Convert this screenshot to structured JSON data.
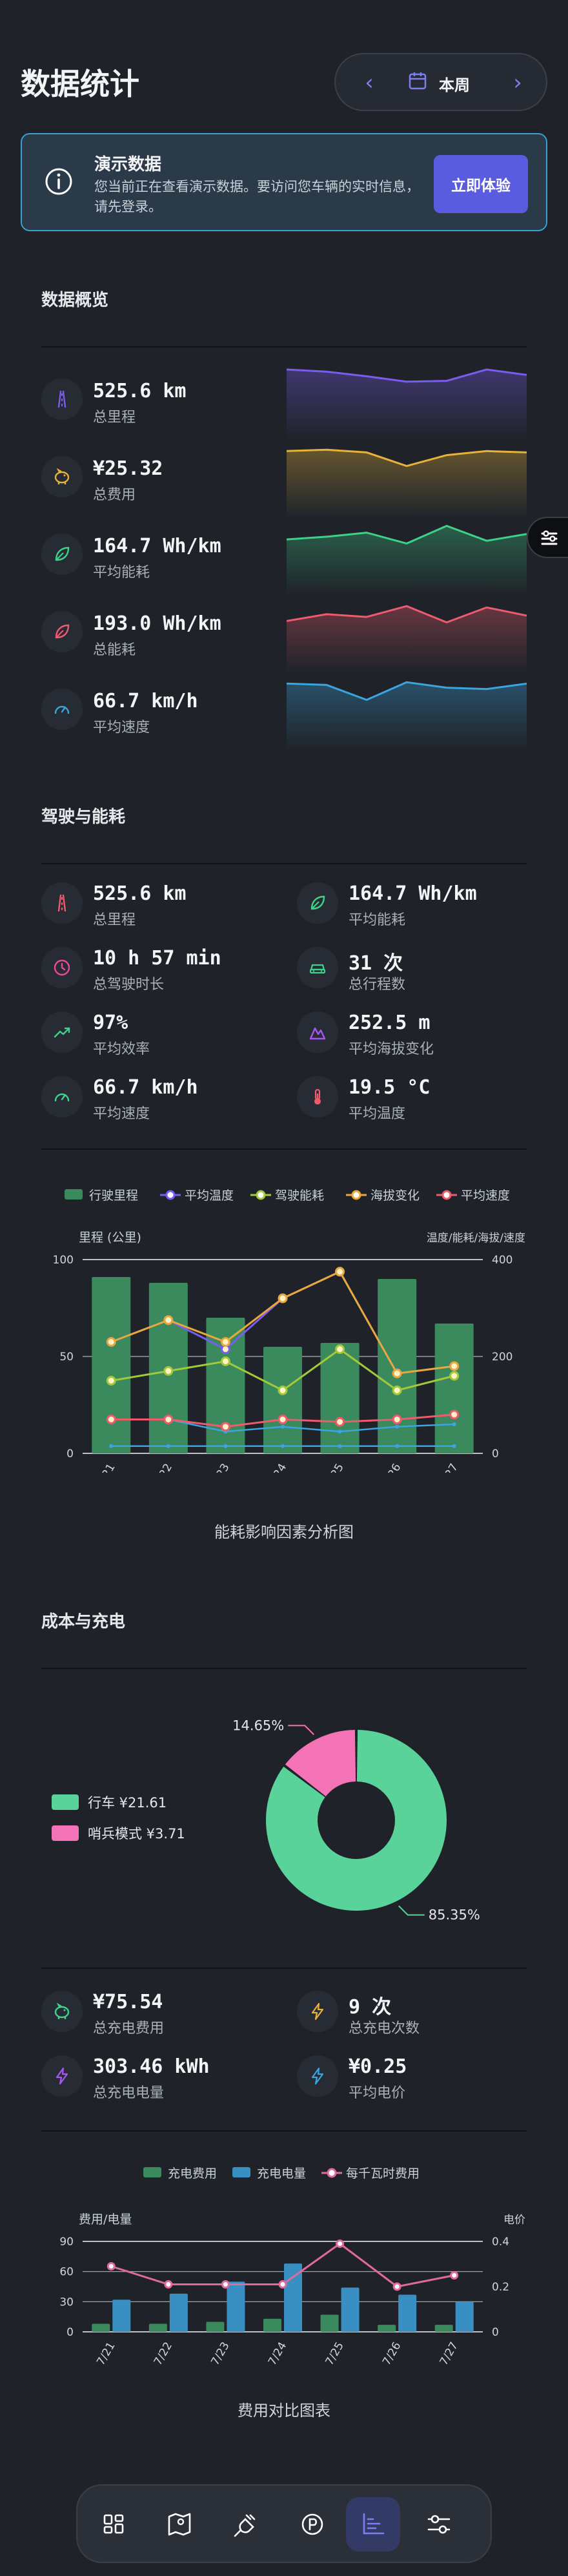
{
  "header": {
    "title": "数据统计",
    "week_label": "本周"
  },
  "banner": {
    "title": "演示数据",
    "text": "您当前正在查看演示数据。要访问您车辆的实时信息，请先登录。",
    "button": "立即体验"
  },
  "overview": {
    "title": "数据概览",
    "items": [
      {
        "icon": "road-icon",
        "value": "525.6 km",
        "label": "总里程",
        "color": "#7b5cf0",
        "trend": [
          1.0,
          0.92,
          0.75,
          0.55,
          0.58,
          1.0,
          0.8
        ]
      },
      {
        "icon": "piggy-bank-icon",
        "value": "¥25.32",
        "label": "总费用",
        "color": "#e8b23a",
        "trend": [
          0.85,
          0.9,
          0.8,
          0.3,
          0.7,
          0.85,
          0.8
        ]
      },
      {
        "icon": "leaf-icon",
        "value": "164.7 Wh/km",
        "label": "平均能耗",
        "color": "#3ed18a",
        "trend": [
          0.45,
          0.55,
          0.7,
          0.3,
          0.95,
          0.4,
          0.65
        ]
      },
      {
        "icon": "leaf-icon",
        "value": "193.0 Wh/km",
        "label": "总能耗",
        "color": "#ef5a6e",
        "trend": [
          0.3,
          0.55,
          0.45,
          0.85,
          0.25,
          0.8,
          0.5
        ]
      },
      {
        "icon": "speedometer-icon",
        "value": "66.7 km/h",
        "label": "平均速度",
        "color": "#3aa5e0",
        "trend": [
          0.85,
          0.8,
          0.25,
          0.9,
          0.7,
          0.65,
          0.85
        ]
      }
    ]
  },
  "driving": {
    "title": "驾驶与能耗",
    "stats": [
      {
        "icon": "road-icon",
        "value": "525.6 km",
        "label": "总里程",
        "color": "#ef5a6e"
      },
      {
        "icon": "leaf-icon",
        "value": "164.7 Wh/km",
        "label": "平均能耗",
        "color": "#3ed18a"
      },
      {
        "icon": "clock-icon",
        "value": "10 h 57 min",
        "label": "总驾驶时长",
        "color": "#ec4899"
      },
      {
        "icon": "car-icon",
        "value": "31 次",
        "label": "总行程数",
        "color": "#3ed18a"
      },
      {
        "icon": "trend-up-icon",
        "value": "97%",
        "label": "平均效率",
        "color": "#3ed18a"
      },
      {
        "icon": "mountain-icon",
        "value": "252.5 m",
        "label": "平均海拔变化",
        "color": "#a855f7"
      },
      {
        "icon": "speedometer-icon",
        "value": "66.7 km/h",
        "label": "平均速度",
        "color": "#3ed18a"
      },
      {
        "icon": "thermometer-icon",
        "value": "19.5 °C",
        "label": "平均温度",
        "color": "#ef5a6e"
      }
    ]
  },
  "chart_data": [
    {
      "type": "bar",
      "title": "能耗影响因素分析图",
      "ylabel": "里程 (公里)",
      "y2label": "温度/能耗/海拔/速度",
      "ylim": [
        0,
        100
      ],
      "y2lim": [
        0,
        400
      ],
      "yticks": [
        0,
        50,
        100
      ],
      "y2ticks": [
        0,
        200,
        400
      ],
      "categories": [
        "7/21",
        "7/22",
        "7/23",
        "7/24",
        "7/25",
        "7/26",
        "7/27"
      ],
      "legend": [
        "行驶里程",
        "平均温度",
        "驾驶能耗",
        "海拔变化",
        "平均速度"
      ],
      "series": [
        {
          "name": "行驶里程",
          "kind": "bar",
          "axis": "left",
          "color": "#3b8a5d",
          "values": [
            91,
            88,
            70,
            55,
            57,
            90,
            67
          ]
        },
        {
          "name": "平均温度",
          "kind": "line",
          "axis": "right",
          "color": "#7b5cf0",
          "values": [
            230,
            275,
            215,
            320,
            375,
            165,
            180
          ]
        },
        {
          "name": "驾驶能耗",
          "kind": "line",
          "axis": "right",
          "color": "#a3c93a",
          "values": [
            150,
            170,
            190,
            130,
            215,
            130,
            160
          ]
        },
        {
          "name": "海拔变化",
          "kind": "line",
          "axis": "right",
          "color": "#e8a83a",
          "values": [
            230,
            275,
            230,
            320,
            375,
            165,
            180
          ]
        },
        {
          "name": "平均速度",
          "kind": "line",
          "axis": "right",
          "color": "#ef5a6e",
          "values": [
            70,
            70,
            55,
            70,
            65,
            70,
            80
          ]
        }
      ],
      "extra_line": {
        "name": "",
        "color": "#3aa5e0",
        "values": [
          15,
          15,
          15,
          15,
          15,
          15,
          15
        ]
      },
      "extra_line2": {
        "name": "",
        "color": "#3aa5e0",
        "values": [
          70,
          70,
          45,
          55,
          45,
          55,
          60
        ]
      }
    },
    {
      "type": "pie",
      "slices": [
        {
          "label": "行车",
          "value": 21.61,
          "display": "¥21.61",
          "percent": "85.35%",
          "color": "#5ad39a"
        },
        {
          "label": "哨兵模式",
          "value": 3.71,
          "display": "¥3.71",
          "percent": "14.65%",
          "color": "#f472b6"
        }
      ]
    },
    {
      "type": "bar",
      "title": "费用对比图表",
      "ylabel": "费用/电量",
      "y2label": "电价",
      "ylim": [
        0,
        90
      ],
      "y2lim": [
        0,
        0.4
      ],
      "yticks": [
        0,
        30,
        60,
        90
      ],
      "y2ticks": [
        0,
        0.2,
        0.4
      ],
      "categories": [
        "7/21",
        "7/22",
        "7/23",
        "7/24",
        "7/25",
        "7/26",
        "7/27"
      ],
      "legend": [
        "充电费用",
        "充电电量",
        "每千瓦时费用"
      ],
      "series": [
        {
          "name": "充电费用",
          "kind": "bar",
          "axis": "left",
          "color": "#3b8a5d",
          "values": [
            8,
            8,
            10,
            13,
            17,
            7,
            7
          ]
        },
        {
          "name": "充电电量",
          "kind": "bar",
          "axis": "left",
          "color": "#3a8fc2",
          "values": [
            32,
            38,
            50,
            68,
            44,
            37,
            30
          ]
        },
        {
          "name": "每千瓦时费用",
          "kind": "line",
          "axis": "right",
          "color": "#e06a9a",
          "values": [
            0.29,
            0.21,
            0.21,
            0.21,
            0.39,
            0.2,
            0.25
          ]
        }
      ]
    }
  ],
  "charging": {
    "title": "成本与充电",
    "stats": [
      {
        "icon": "piggy-bank-icon",
        "value": "¥75.54",
        "label": "总充电费用",
        "color": "#3ed18a"
      },
      {
        "icon": "lightning-icon",
        "value": "9 次",
        "label": "总充电次数",
        "color": "#e8b23a"
      },
      {
        "icon": "lightning-icon",
        "value": "303.46 kWh",
        "label": "总充电电量",
        "color": "#a855f7"
      },
      {
        "icon": "lightning-icon",
        "value": "¥0.25",
        "label": "平均电价",
        "color": "#3aa5e0"
      }
    ]
  },
  "nav": [
    "dashboard-icon",
    "map-icon",
    "charging-plug-icon",
    "parking-icon",
    "stats-chart-icon",
    "settings-sliders-icon"
  ],
  "colors": {
    "accent": "#5a5ce0",
    "info_border": "#3a9fd1"
  }
}
